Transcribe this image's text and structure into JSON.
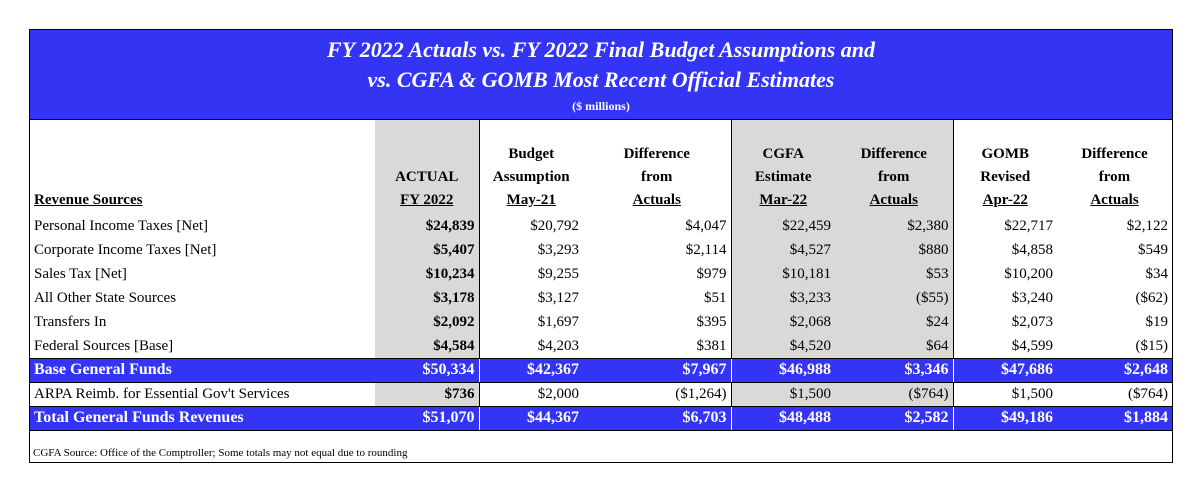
{
  "title": {
    "line1": "FY 2022 Actuals vs. FY 2022 Final Budget Assumptions and",
    "line2": "vs. CGFA & GOMB Most Recent Official Estimates",
    "units": "($ millions)"
  },
  "headers": {
    "label": "Revenue Sources",
    "actual": [
      "ACTUAL",
      "FY 2022"
    ],
    "budget": [
      "Budget",
      "Assumption",
      "May-21"
    ],
    "budget_diff": [
      "Difference",
      "from",
      "Actuals"
    ],
    "cgfa": [
      "CGFA",
      "Estimate",
      "Mar-22"
    ],
    "cgfa_diff": [
      "Difference",
      "from",
      "Actuals"
    ],
    "gomb": [
      "GOMB",
      "Revised",
      "Apr-22"
    ],
    "gomb_diff": [
      "Difference",
      "from",
      "Actuals"
    ]
  },
  "rows": [
    {
      "label": "Personal Income Taxes [Net]",
      "actual": "$24,839",
      "budget": "$20,792",
      "budget_diff": "$4,047",
      "cgfa": "$22,459",
      "cgfa_diff": "$2,380",
      "gomb": "$22,717",
      "gomb_diff": "$2,122"
    },
    {
      "label": "Corporate Income Taxes [Net]",
      "actual": "$5,407",
      "budget": "$3,293",
      "budget_diff": "$2,114",
      "cgfa": "$4,527",
      "cgfa_diff": "$880",
      "gomb": "$4,858",
      "gomb_diff": "$549"
    },
    {
      "label": "Sales Tax [Net]",
      "actual": "$10,234",
      "budget": "$9,255",
      "budget_diff": "$979",
      "cgfa": "$10,181",
      "cgfa_diff": "$53",
      "gomb": "$10,200",
      "gomb_diff": "$34"
    },
    {
      "label": "All Other State Sources",
      "actual": "$3,178",
      "budget": "$3,127",
      "budget_diff": "$51",
      "cgfa": "$3,233",
      "cgfa_diff": "($55)",
      "gomb": "$3,240",
      "gomb_diff": "($62)"
    },
    {
      "label": "Transfers In",
      "actual": "$2,092",
      "budget": "$1,697",
      "budget_diff": "$395",
      "cgfa": "$2,068",
      "cgfa_diff": "$24",
      "gomb": "$2,073",
      "gomb_diff": "$19"
    },
    {
      "label": "Federal Sources [Base]",
      "actual": "$4,584",
      "budget": "$4,203",
      "budget_diff": "$381",
      "cgfa": "$4,520",
      "cgfa_diff": "$64",
      "gomb": "$4,599",
      "gomb_diff": "($15)"
    }
  ],
  "base_total": {
    "label": "Base General Funds",
    "actual": "$50,334",
    "budget": "$42,367",
    "budget_diff": "$7,967",
    "cgfa": "$46,988",
    "cgfa_diff": "$3,346",
    "gomb": "$47,686",
    "gomb_diff": "$2,648"
  },
  "arpa": {
    "label": "ARPA Reimb. for Essential Gov't Services",
    "actual": "$736",
    "budget": "$2,000",
    "budget_diff": "($1,264)",
    "cgfa": "$1,500",
    "cgfa_diff": "($764)",
    "gomb": "$1,500",
    "gomb_diff": "($764)"
  },
  "grand_total": {
    "label": "Total General Funds Revenues",
    "actual": "$51,070",
    "budget": "$44,367",
    "budget_diff": "$6,703",
    "cgfa": "$48,488",
    "cgfa_diff": "$2,582",
    "gomb": "$49,186",
    "gomb_diff": "$1,884"
  },
  "footnote": "CGFA Source: Office of the Comptroller; Some totals may not equal due to rounding",
  "colors": {
    "header_blue": "#3434f5",
    "shade_gray": "#d9d9d9"
  }
}
